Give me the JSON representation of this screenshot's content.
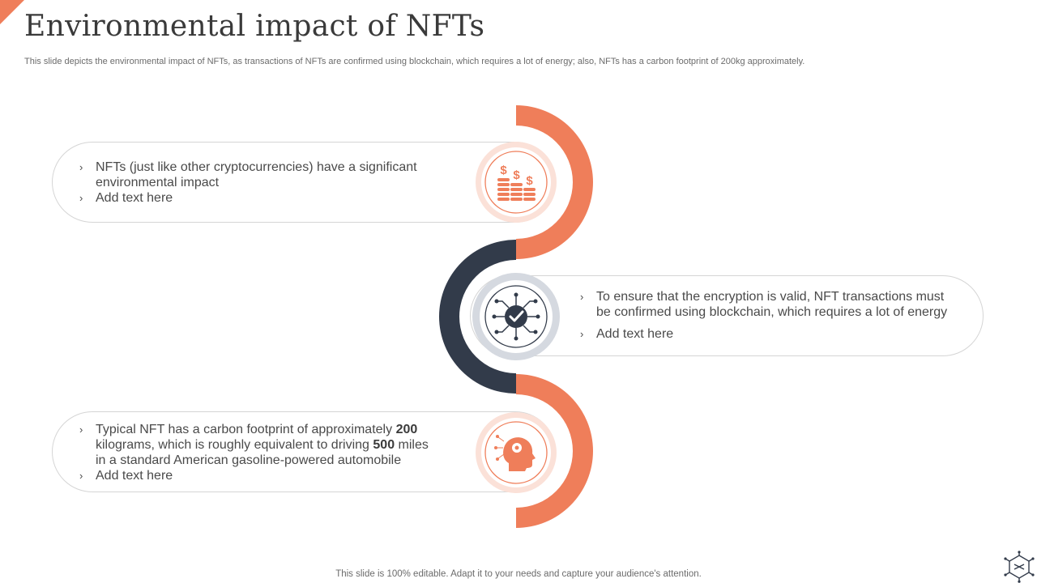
{
  "slide": {
    "title": "Environmental impact of NFTs",
    "subtitle": "This slide depicts the environmental impact of NFTs, as transactions of NFTs are confirmed using blockchain, which requires a lot of energy; also, NFTs has a carbon footprint of 200kg approximately.",
    "footer": "This slide is 100% editable. Adapt it to your needs and capture your audience's attention."
  },
  "colors": {
    "accent": "#ef7e5a",
    "dark": "#323b4a",
    "accent_light": "#fbe1d8",
    "grey_ring": "#d5d9e0"
  },
  "items": [
    {
      "icon": "coins-dollar-icon",
      "bullet1": "NFTs (just like other cryptocurrencies) have a significant environmental impact",
      "bullet2": "Add text here"
    },
    {
      "icon": "blockchain-check-icon",
      "bullet1": "To ensure that the encryption is valid, NFT transactions must be confirmed using blockchain, which requires a lot of energy",
      "bullet2": "Add text here"
    },
    {
      "icon": "head-gear-icon",
      "bullet1_a": "Typical NFT has a carbon footprint of approximately",
      "bullet1_b": "200",
      "bullet1_c": "kilograms, which is roughly equivalent to driving",
      "bullet1_d": "500",
      "bullet1_e": "miles in a standard American gasoline-powered automobile",
      "bullet2": "Add text here"
    }
  ],
  "logo_icon": "network-hexagon-icon"
}
